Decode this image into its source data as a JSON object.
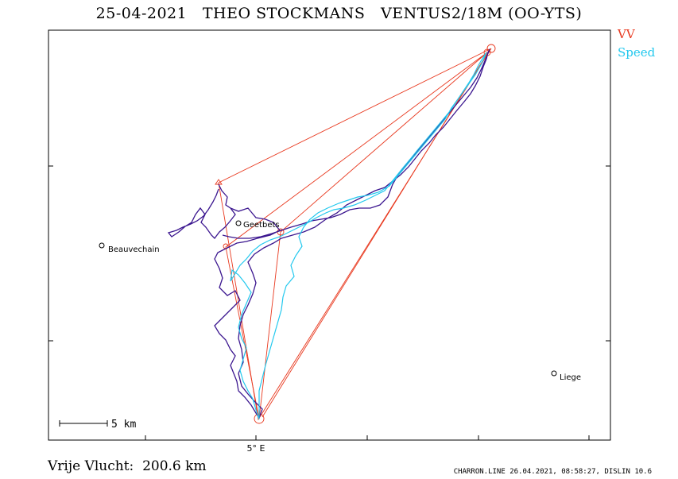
{
  "title": "25-04-2021   THEO STOCKMANS   VENTUS2/18M (OO-YTS)",
  "legend": {
    "vv_label": "VV",
    "speed_label": "Speed",
    "vv_color": "#e8381e",
    "speed_color": "#22c8ee",
    "track_color": "#3b168f"
  },
  "places": [
    {
      "name": "Beauvechain"
    },
    {
      "name": "Geetbets"
    },
    {
      "name": "Liege"
    }
  ],
  "scale": {
    "label": "5 km"
  },
  "axis": {
    "x_tick_label": "5° E"
  },
  "footer": {
    "distance": "Vrije Vlucht:  200.6 km",
    "credits": "CHARRON.LINE 26.04.2021, 08:58:27, DISLIN 10.6"
  }
}
